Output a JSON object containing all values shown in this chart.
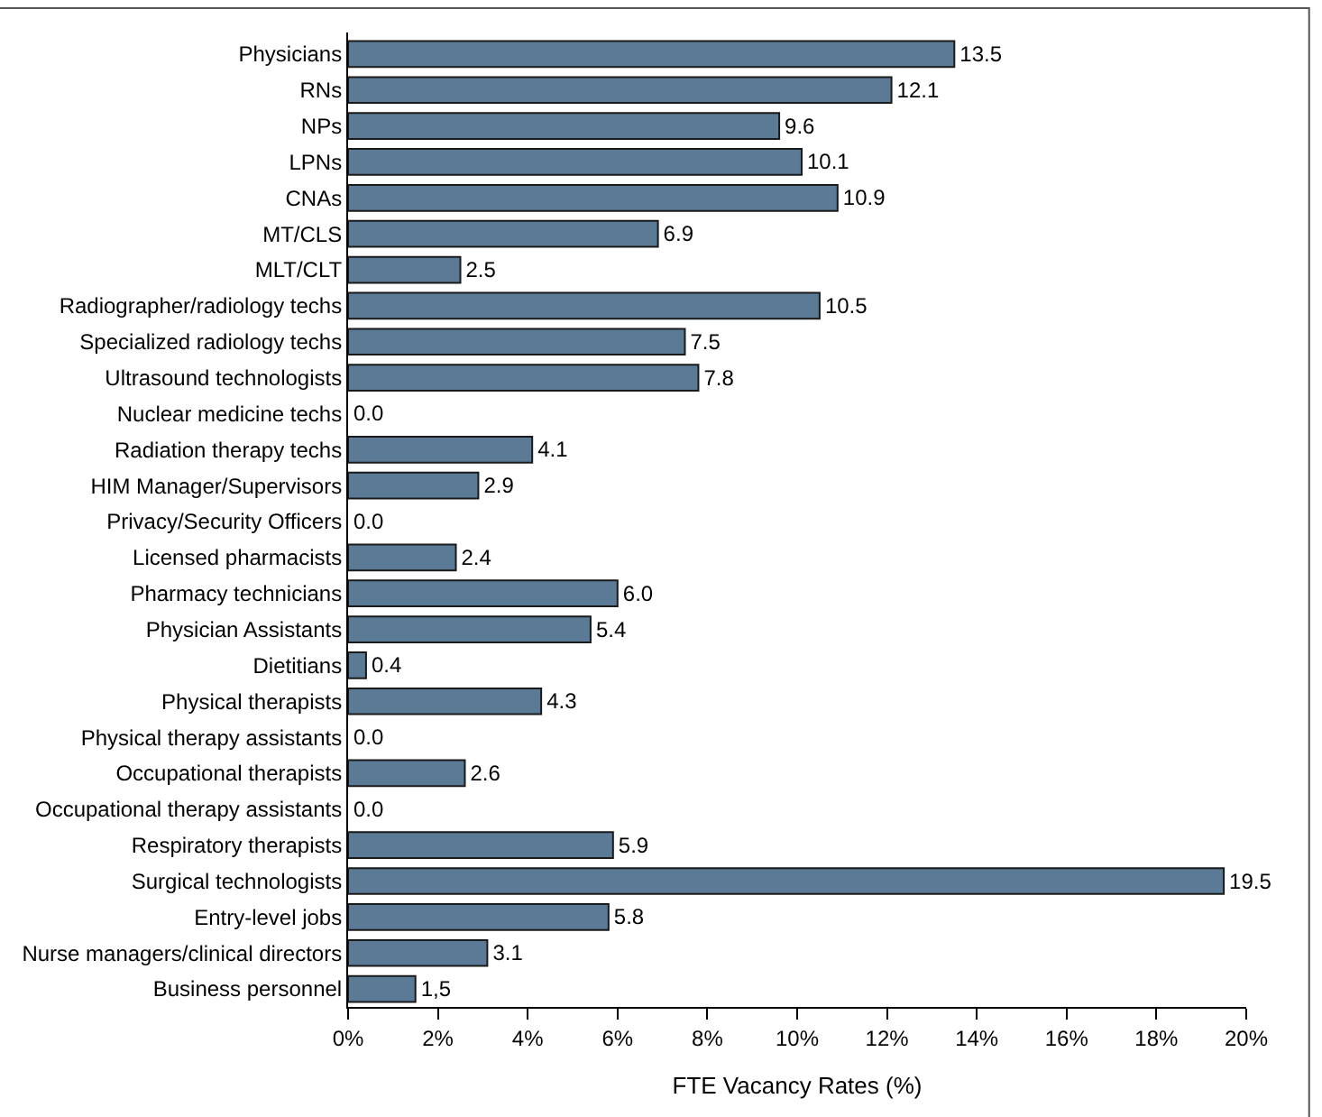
{
  "chart_data": {
    "type": "bar",
    "orientation": "horizontal",
    "xlabel": "FTE Vacancy Rates (%)",
    "categories": [
      "Physicians",
      "RNs",
      "NPs",
      "LPNs",
      "CNAs",
      "MT/CLS",
      "MLT/CLT",
      "Radiographer/radiology techs",
      "Specialized radiology techs",
      "Ultrasound technologists",
      "Nuclear medicine techs",
      "Radiation therapy techs",
      "HIM Manager/Supervisors",
      "Privacy/Security Officers",
      "Licensed pharmacists",
      "Pharmacy technicians",
      "Physician Assistants",
      "Dietitians",
      "Physical therapists",
      "Physical therapy assistants",
      "Occupational therapists",
      "Occupational therapy assistants",
      "Respiratory therapists",
      "Surgical technologists",
      "Entry-level jobs",
      "Nurse managers/clinical directors",
      "Business personnel"
    ],
    "values": [
      13.5,
      12.1,
      9.6,
      10.1,
      10.9,
      6.9,
      2.5,
      10.5,
      7.5,
      7.8,
      0.0,
      4.1,
      2.9,
      0.0,
      2.4,
      6.0,
      5.4,
      0.4,
      4.3,
      0.0,
      2.6,
      0.0,
      5.9,
      19.5,
      5.8,
      3.1,
      1.5
    ],
    "value_labels": [
      "13.5",
      "12.1",
      "9.6",
      "10.1",
      "10.9",
      "6.9",
      "2.5",
      "10.5",
      "7.5",
      "7.8",
      "0.0",
      "4.1",
      "2.9",
      "0.0",
      "2.4",
      "6.0",
      "5.4",
      "0.4",
      "4.3",
      "0.0",
      "2.6",
      "0.0",
      "5.9",
      "19.5",
      "5.8",
      "3.1",
      "1,5"
    ],
    "color": "#5a7a96",
    "xlim": [
      0,
      20
    ],
    "xticks": [
      {
        "value": 0,
        "label": "0%"
      },
      {
        "value": 2,
        "label": "2%"
      },
      {
        "value": 4,
        "label": "4%"
      },
      {
        "value": 6,
        "label": "6%"
      },
      {
        "value": 8,
        "label": "8%"
      },
      {
        "value": 10,
        "label": "10%"
      },
      {
        "value": 12,
        "label": "12%"
      },
      {
        "value": 14,
        "label": "14%"
      },
      {
        "value": 16,
        "label": "16%"
      },
      {
        "value": 18,
        "label": "18%"
      },
      {
        "value": 20,
        "label": "20%"
      }
    ],
    "legend": false
  }
}
